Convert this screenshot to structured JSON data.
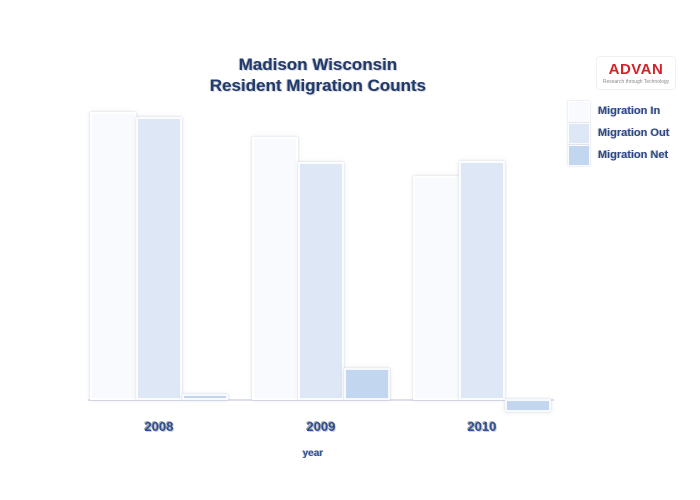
{
  "page": {
    "background": "#ffffff"
  },
  "title": {
    "line1": "Madison Wisconsin",
    "line2": "Resident Migration Counts",
    "color": "#1f3a6e"
  },
  "logo": {
    "text": "ADVAN",
    "tagline": "Research through Technology",
    "color": "#d3222a"
  },
  "legend": {
    "position": "top-right",
    "items": [
      {
        "label": "Migration In",
        "color": "#f8fafd"
      },
      {
        "label": "Migration Out",
        "color": "#dde7f6"
      },
      {
        "label": "Migration Net",
        "color": "#c2d7ef"
      }
    ]
  },
  "chart_data": {
    "type": "bar",
    "title": "Madison Wisconsin Resident Migration Counts",
    "xlabel": "year",
    "ylabel": "",
    "categories": [
      "2008",
      "2009",
      "2010"
    ],
    "series": [
      {
        "name": "Migration In",
        "color": "#f8fafd",
        "values": [
          288,
          263,
          224
        ]
      },
      {
        "name": "Migration Out",
        "color": "#dde7f6",
        "values": [
          283,
          238,
          239
        ]
      },
      {
        "name": "Migration Net",
        "color": "#c2d7ef",
        "values": [
          6,
          32,
          -13
        ]
      }
    ],
    "value_note": "heights estimated in pixels; no y-axis scale shown in source",
    "ylim": [
      -20,
      300
    ],
    "grid": false,
    "y_axis_visible": false,
    "legend_position": "top-right"
  }
}
